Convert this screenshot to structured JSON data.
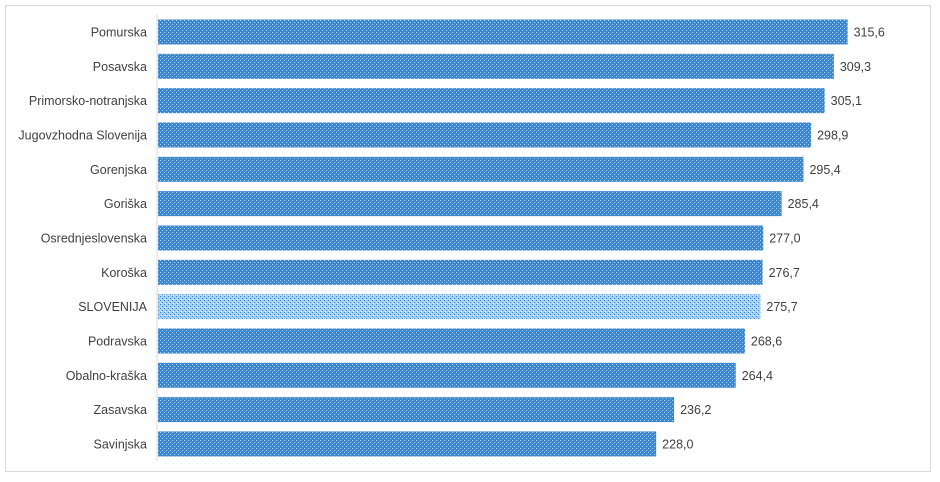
{
  "chart_data": {
    "type": "bar",
    "orientation": "horizontal",
    "categories": [
      "Pomurska",
      "Posavska",
      "Primorsko-notranjska",
      "Jugovzhodna Slovenija",
      "Gorenjska",
      "Goriška",
      "Osrednjeslovenska",
      "Koroška",
      "SLOVENIJA",
      "Podravska",
      "Obalno-kraška",
      "Zasavska",
      "Savinjska"
    ],
    "values": [
      315.6,
      309.3,
      305.1,
      298.9,
      295.4,
      285.4,
      277.0,
      276.7,
      275.7,
      268.6,
      264.4,
      236.2,
      228.0
    ],
    "data_labels": [
      "315,6",
      "309,3",
      "305,1",
      "298,9",
      "295,4",
      "285,4",
      "277,0",
      "276,7",
      "275,7",
      "268,6",
      "264,4",
      "236,2",
      "228,0"
    ],
    "highlight_category": "SLOVENIJA",
    "xlim": [
      0,
      330
    ],
    "grid": false,
    "legend": "none",
    "colors": {
      "bar": "#3b87d0",
      "bar_dots": "#a9cff0",
      "highlight": "#a8d0f2",
      "highlight_dots": "#3b87d0",
      "label": "#404040"
    }
  }
}
